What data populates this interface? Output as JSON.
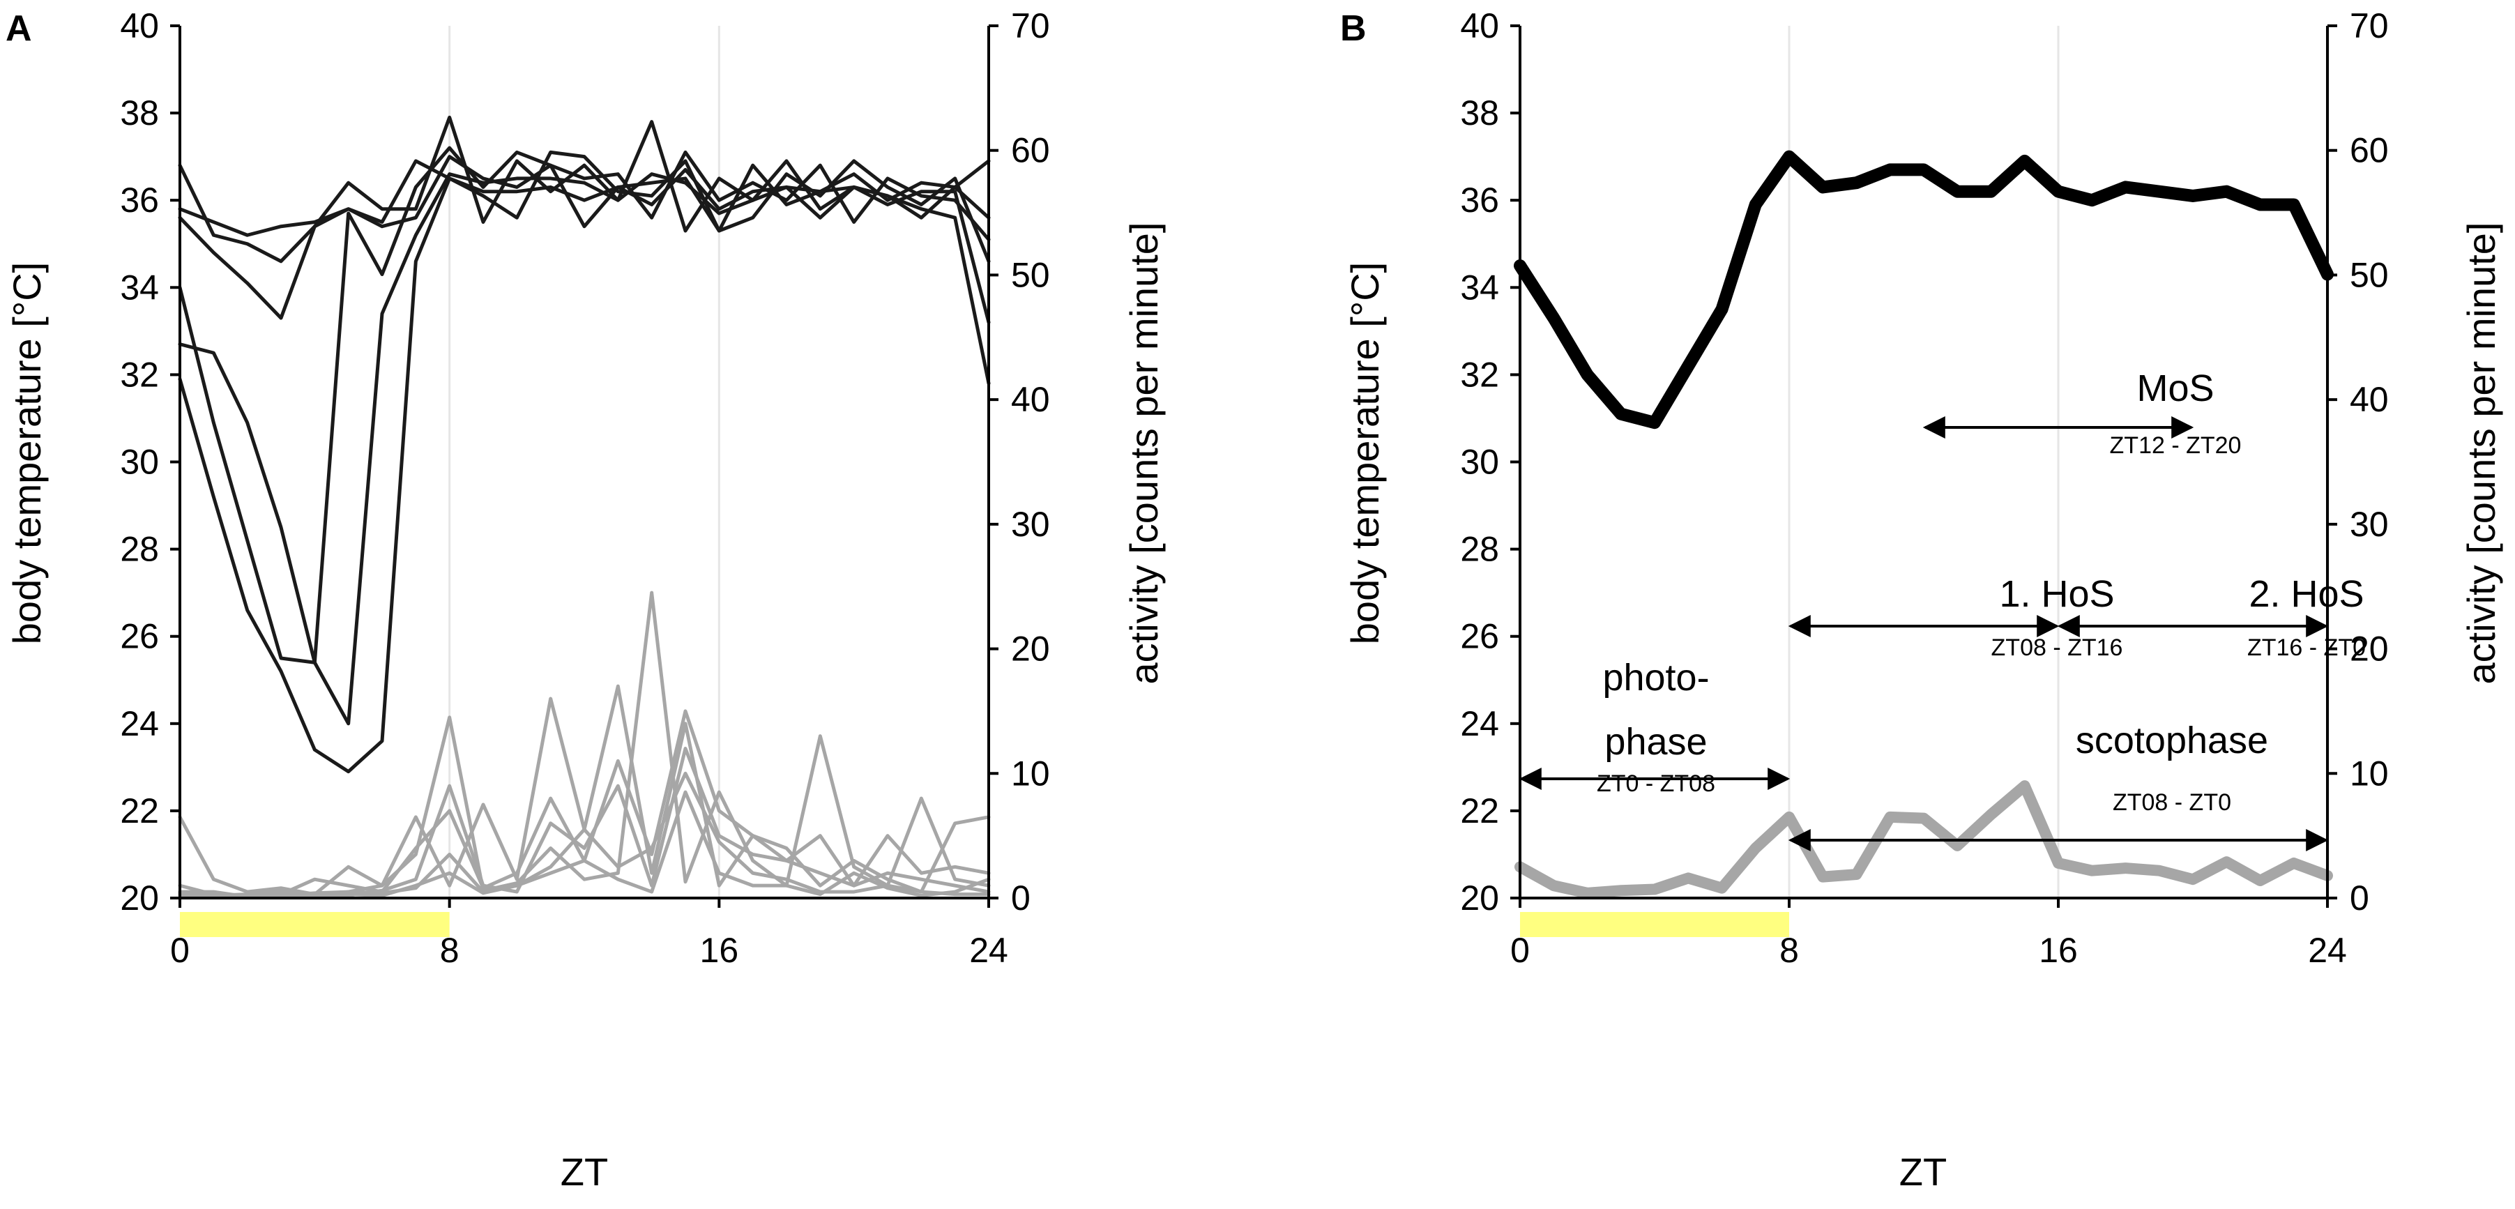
{
  "chart_data": [
    {
      "panel": "A",
      "type": "line",
      "xlabel": "ZT",
      "ylabel_left": "body temperature [°C]",
      "ylabel_right": "activity [counts per minute]",
      "xlim": [
        0,
        24
      ],
      "ylim_left": [
        20,
        40
      ],
      "ylim_right": [
        0,
        70
      ],
      "x_ticks": [
        "0",
        "8",
        "16",
        "24"
      ],
      "y_left_ticks": [
        "20",
        "22",
        "24",
        "26",
        "28",
        "30",
        "32",
        "34",
        "36",
        "38",
        "40"
      ],
      "y_right_ticks": [
        "0",
        "10",
        "20",
        "30",
        "40",
        "50",
        "60",
        "70"
      ],
      "photophase_bar": [
        0,
        8
      ],
      "colors": {
        "temperature": "#1a1a1a",
        "activity": "#a6a6a6",
        "photophase": "#ffff80",
        "grid": "#e6e6e6"
      },
      "x": [
        0,
        1,
        2,
        3,
        4,
        5,
        6,
        7,
        8,
        9,
        10,
        11,
        12,
        13,
        14,
        15,
        16,
        17,
        18,
        19,
        20,
        21,
        22,
        23,
        24
      ],
      "temperature_series": [
        {
          "values": [
            36.8,
            35.2,
            35.0,
            34.6,
            35.4,
            36.4,
            35.8,
            35.8,
            37.9,
            35.5,
            36.9,
            36.2,
            36.8,
            36.0,
            37.8,
            35.3,
            36.5,
            36.0,
            36.9,
            35.8,
            36.3,
            36.1,
            35.6,
            36.3,
            36.9
          ]
        },
        {
          "values": [
            35.8,
            35.5,
            35.2,
            35.4,
            35.5,
            35.8,
            35.5,
            36.9,
            36.5,
            36.1,
            35.6,
            37.1,
            37.0,
            36.2,
            36.1,
            36.9,
            35.3,
            36.8,
            35.9,
            36.2,
            36.6,
            36.0,
            36.4,
            36.3,
            35.6
          ]
        },
        {
          "values": [
            35.6,
            34.8,
            34.1,
            33.3,
            35.4,
            35.8,
            35.4,
            35.6,
            37.0,
            36.5,
            36.3,
            36.8,
            36.5,
            36.6,
            35.6,
            37.1,
            36.0,
            36.4,
            36.0,
            36.8,
            35.5,
            36.5,
            36.1,
            36.0,
            35.1
          ]
        },
        {
          "values": [
            34.0,
            30.9,
            28.2,
            25.5,
            25.4,
            35.7,
            34.3,
            36.3,
            37.2,
            36.3,
            37.1,
            36.8,
            35.4,
            36.3,
            36.4,
            36.5,
            35.3,
            35.6,
            36.6,
            36.1,
            36.9,
            36.3,
            35.9,
            36.5,
            34.6
          ]
        },
        {
          "values": [
            32.7,
            32.5,
            30.9,
            28.5,
            25.4,
            24.0,
            33.4,
            35.2,
            36.6,
            36.4,
            36.5,
            36.5,
            36.4,
            36.0,
            36.6,
            36.4,
            35.7,
            36.0,
            36.3,
            35.6,
            36.3,
            35.9,
            36.2,
            36.2,
            33.2
          ]
        },
        {
          "values": [
            31.9,
            29.2,
            26.6,
            25.2,
            23.4,
            22.9,
            23.6,
            34.6,
            36.5,
            36.2,
            36.2,
            36.3,
            36.0,
            36.3,
            35.9,
            36.7,
            35.8,
            36.2,
            36.3,
            36.2,
            36.3,
            36.1,
            35.8,
            35.6,
            31.8
          ]
        }
      ],
      "activity_series": [
        {
          "values": [
            6.5,
            1.5,
            0.5,
            0.8,
            0.3,
            2.5,
            1.0,
            3.5,
            14.5,
            0.6,
            1.2,
            4.0,
            1.5,
            2.0,
            24.5,
            1.3,
            8.5,
            3.0,
            1.0,
            13.0,
            2.5,
            1.0,
            8.0,
            1.5,
            1.0
          ]
        },
        {
          "values": [
            1.0,
            0.3,
            0.2,
            0.6,
            0.2,
            0.5,
            1.0,
            6.5,
            1.0,
            7.5,
            1.5,
            16.0,
            5.5,
            17.0,
            2.0,
            14.0,
            1.0,
            5.0,
            3.0,
            5.0,
            1.0,
            5.0,
            2.0,
            2.5,
            2.0
          ]
        },
        {
          "values": [
            0.5,
            0.5,
            0.1,
            0.3,
            1.5,
            1.0,
            0.5,
            4.0,
            7.0,
            0.8,
            2.0,
            8.0,
            3.0,
            11.0,
            3.5,
            15.0,
            7.0,
            5.0,
            4.0,
            1.0,
            3.0,
            1.5,
            0.5,
            6.0,
            6.5
          ]
        },
        {
          "values": [
            0.3,
            0.2,
            0.3,
            0.4,
            0.3,
            0.2,
            0.6,
            1.5,
            9.0,
            1.0,
            0.5,
            6.0,
            4.0,
            9.0,
            1.0,
            12.0,
            5.0,
            3.5,
            3.0,
            2.0,
            1.0,
            2.0,
            1.5,
            1.0,
            0.5
          ]
        },
        {
          "values": [
            0.2,
            0.1,
            0.2,
            0.2,
            0.4,
            0.5,
            0.4,
            0.8,
            3.5,
            0.5,
            1.0,
            2.5,
            5.5,
            2.5,
            4.0,
            10.0,
            4.5,
            2.0,
            1.5,
            0.5,
            0.5,
            1.0,
            0.5,
            0.3,
            0.3
          ]
        },
        {
          "values": [
            0.4,
            0.3,
            0.2,
            0.1,
            0.2,
            0.3,
            0.2,
            1.0,
            2.0,
            0.4,
            1.0,
            2.0,
            3.0,
            1.5,
            0.5,
            8.5,
            2.0,
            1.0,
            1.0,
            0.3,
            2.0,
            0.8,
            0.2,
            0.5,
            1.5
          ]
        }
      ]
    },
    {
      "panel": "B",
      "type": "line",
      "xlabel": "ZT",
      "ylabel_left": "body temperature [°C]",
      "ylabel_right": "activity [counts per minute]",
      "xlim": [
        0,
        24
      ],
      "ylim_left": [
        20,
        40
      ],
      "ylim_right": [
        0,
        70
      ],
      "x_ticks": [
        "0",
        "8",
        "16",
        "24"
      ],
      "y_left_ticks": [
        "20",
        "22",
        "24",
        "26",
        "28",
        "30",
        "32",
        "34",
        "36",
        "38",
        "40"
      ],
      "y_right_ticks": [
        "0",
        "10",
        "20",
        "30",
        "40",
        "50",
        "60",
        "70"
      ],
      "photophase_bar": [
        0,
        8
      ],
      "colors": {
        "temperature": "#000000",
        "activity": "#a6a6a6",
        "photophase": "#ffff80",
        "grid": "#e6e6e6"
      },
      "x": [
        0,
        1,
        2,
        3,
        4,
        5,
        6,
        7,
        8,
        9,
        10,
        11,
        12,
        13,
        14,
        15,
        16,
        17,
        18,
        19,
        20,
        21,
        22,
        23,
        24
      ],
      "temperature_series": [
        {
          "values": [
            34.5,
            33.3,
            32.0,
            31.1,
            30.9,
            32.2,
            33.5,
            35.9,
            37.0,
            36.3,
            36.4,
            36.7,
            36.7,
            36.2,
            36.2,
            36.9,
            36.2,
            36.0,
            36.3,
            36.2,
            36.1,
            36.2,
            35.9,
            35.9,
            34.3
          ]
        }
      ],
      "activity_series": [
        {
          "values": [
            2.5,
            1.0,
            0.4,
            0.6,
            0.7,
            1.6,
            0.8,
            4.0,
            6.5,
            1.7,
            1.9,
            6.5,
            6.4,
            4.2,
            6.7,
            9.0,
            2.8,
            2.2,
            2.4,
            2.2,
            1.5,
            2.9,
            1.4,
            2.8,
            1.8
          ]
        }
      ],
      "annotations": {
        "mos": {
          "title": "MoS",
          "range_label": "ZT12 - ZT20",
          "from": 12,
          "to": 20
        },
        "hos1": {
          "title": "1. HoS",
          "range_label": "ZT08 - ZT16",
          "from": 8,
          "to": 16
        },
        "hos2": {
          "title": "2. HoS",
          "range_label": "ZT16 - ZT0",
          "from": 16,
          "to": 24
        },
        "photophase": {
          "title_line1": "photo-",
          "title_line2": "phase",
          "range_label": "ZT0 - ZT08",
          "from": 0,
          "to": 8
        },
        "scotophase": {
          "title": "scotophase",
          "range_label": "ZT08 - ZT0",
          "from": 8,
          "to": 24
        }
      }
    }
  ]
}
